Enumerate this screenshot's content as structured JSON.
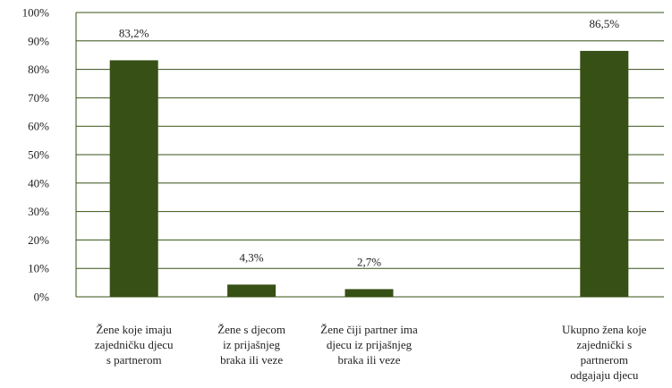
{
  "chart_data": {
    "type": "bar",
    "categories": [
      [
        "Žene koje imaju",
        "zajedničku djecu",
        "s partnerom"
      ],
      [
        "Žene s djecom",
        "iz prijašnjeg",
        "braka ili veze"
      ],
      [
        "Žene čiji partner ima",
        "djecu iz prijašnjeg",
        "braka ili veze"
      ],
      [],
      [
        "Ukupno žena koje",
        "zajednički s",
        "partnerom",
        "odgajaju djecu"
      ]
    ],
    "values": [
      83.2,
      4.3,
      2.7,
      null,
      86.5
    ],
    "data_labels": [
      "83,2%",
      "4,3%",
      "2,7%",
      "",
      "86,5%"
    ],
    "ylim": [
      0,
      100
    ],
    "yticks": [
      0,
      10,
      20,
      30,
      40,
      50,
      60,
      70,
      80,
      90,
      100
    ],
    "ytick_labels": [
      "0%",
      "10%",
      "20%",
      "30%",
      "40%",
      "50%",
      "60%",
      "70%",
      "80%",
      "90%",
      "100%"
    ],
    "grid": true,
    "bar_color": "#375015",
    "grid_color": "#375015",
    "title": "",
    "xlabel": "",
    "ylabel": ""
  }
}
